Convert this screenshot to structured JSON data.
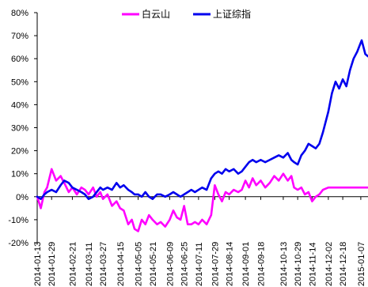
{
  "chart_data": {
    "type": "line",
    "title": "",
    "xlabel": "",
    "ylabel": "",
    "ylim": [
      -20,
      80
    ],
    "yticks": [
      80,
      70,
      60,
      50,
      40,
      30,
      20,
      10,
      0,
      -10,
      -20
    ],
    "ytick_labels": [
      "80%",
      "70%",
      "60%",
      "50%",
      "40%",
      "30%",
      "20%",
      "10%",
      "0%",
      "-10%",
      "-20%"
    ],
    "x_start": "2014-01-13",
    "x_end": "2015-01-15",
    "xtick_labels": [
      "2014-01-13",
      "2014-01-29",
      "2014-02-21",
      "2014-03-11",
      "2014-03-27",
      "2014-04-15",
      "2014-05-05",
      "2014-05-21",
      "2014-06-09",
      "2014-06-25",
      "2014-07-11",
      "2014-07-29",
      "2014-08-14",
      "2014-09-01",
      "2014-09-18",
      "2014-10-13",
      "2014-10-29",
      "2014-11-14",
      "2014-12-02",
      "2014-12-18",
      "2015-01-07"
    ],
    "legend_position": "top",
    "grid": false,
    "series": [
      {
        "name": "白云山",
        "color": "#ff00ff",
        "points": [
          [
            "2014-01-13",
            0
          ],
          [
            "2014-01-17",
            -5
          ],
          [
            "2014-01-21",
            2
          ],
          [
            "2014-01-24",
            4
          ],
          [
            "2014-01-29",
            12
          ],
          [
            "2014-02-03",
            7
          ],
          [
            "2014-02-08",
            9
          ],
          [
            "2014-02-12",
            6
          ],
          [
            "2014-02-17",
            2
          ],
          [
            "2014-02-21",
            4
          ],
          [
            "2014-02-26",
            1
          ],
          [
            "2014-03-03",
            4
          ],
          [
            "2014-03-07",
            3
          ],
          [
            "2014-03-11",
            1
          ],
          [
            "2014-03-16",
            4
          ],
          [
            "2014-03-20",
            0
          ],
          [
            "2014-03-24",
            2
          ],
          [
            "2014-03-27",
            -1
          ],
          [
            "2014-04-01",
            1
          ],
          [
            "2014-04-06",
            -4
          ],
          [
            "2014-04-11",
            -2
          ],
          [
            "2014-04-15",
            -5
          ],
          [
            "2014-04-19",
            -6
          ],
          [
            "2014-04-24",
            -12
          ],
          [
            "2014-04-28",
            -10
          ],
          [
            "2014-05-01",
            -14
          ],
          [
            "2014-05-05",
            -15
          ],
          [
            "2014-05-09",
            -10
          ],
          [
            "2014-05-13",
            -12
          ],
          [
            "2014-05-17",
            -8
          ],
          [
            "2014-05-21",
            -10
          ],
          [
            "2014-05-26",
            -12
          ],
          [
            "2014-05-30",
            -11
          ],
          [
            "2014-06-04",
            -13
          ],
          [
            "2014-06-09",
            -10
          ],
          [
            "2014-06-13",
            -6
          ],
          [
            "2014-06-17",
            -9
          ],
          [
            "2014-06-21",
            -10
          ],
          [
            "2014-06-25",
            -4
          ],
          [
            "2014-06-29",
            -12
          ],
          [
            "2014-07-03",
            -12
          ],
          [
            "2014-07-07",
            -11
          ],
          [
            "2014-07-11",
            -12
          ],
          [
            "2014-07-15",
            -10
          ],
          [
            "2014-07-20",
            -12
          ],
          [
            "2014-07-25",
            -8
          ],
          [
            "2014-07-29",
            5
          ],
          [
            "2014-08-02",
            1
          ],
          [
            "2014-08-06",
            -2
          ],
          [
            "2014-08-10",
            2
          ],
          [
            "2014-08-14",
            1
          ],
          [
            "2014-08-19",
            3
          ],
          [
            "2014-08-24",
            2
          ],
          [
            "2014-08-28",
            3
          ],
          [
            "2014-09-01",
            7
          ],
          [
            "2014-09-05",
            4
          ],
          [
            "2014-09-09",
            8
          ],
          [
            "2014-09-13",
            5
          ],
          [
            "2014-09-18",
            7
          ],
          [
            "2014-09-23",
            4
          ],
          [
            "2014-09-28",
            6
          ],
          [
            "2014-10-03",
            9
          ],
          [
            "2014-10-08",
            7
          ],
          [
            "2014-10-13",
            10
          ],
          [
            "2014-10-18",
            7
          ],
          [
            "2014-10-22",
            9
          ],
          [
            "2014-10-25",
            4
          ],
          [
            "2014-10-29",
            3
          ],
          [
            "2014-11-02",
            4
          ],
          [
            "2014-11-06",
            1
          ],
          [
            "2014-11-10",
            2
          ],
          [
            "2014-11-14",
            -2
          ],
          [
            "2014-11-18",
            0
          ],
          [
            "2014-11-22",
            1
          ],
          [
            "2014-11-26",
            3
          ],
          [
            "2014-12-02",
            4
          ],
          [
            "2014-12-10",
            4
          ],
          [
            "2014-12-18",
            4
          ],
          [
            "2014-12-28",
            4
          ],
          [
            "2015-01-07",
            4
          ],
          [
            "2015-01-15",
            4
          ]
        ]
      },
      {
        "name": "上证综指",
        "color": "#0000ee",
        "points": [
          [
            "2014-01-13",
            0
          ],
          [
            "2014-01-17",
            -1
          ],
          [
            "2014-01-21",
            1
          ],
          [
            "2014-01-24",
            2
          ],
          [
            "2014-01-29",
            3
          ],
          [
            "2014-02-03",
            2
          ],
          [
            "2014-02-08",
            5
          ],
          [
            "2014-02-12",
            7
          ],
          [
            "2014-02-17",
            6
          ],
          [
            "2014-02-21",
            4
          ],
          [
            "2014-02-26",
            3
          ],
          [
            "2014-03-03",
            2
          ],
          [
            "2014-03-07",
            1
          ],
          [
            "2014-03-11",
            -1
          ],
          [
            "2014-03-16",
            0
          ],
          [
            "2014-03-20",
            2
          ],
          [
            "2014-03-24",
            4
          ],
          [
            "2014-03-27",
            3
          ],
          [
            "2014-04-01",
            4
          ],
          [
            "2014-04-06",
            3
          ],
          [
            "2014-04-11",
            6
          ],
          [
            "2014-04-15",
            4
          ],
          [
            "2014-04-19",
            5
          ],
          [
            "2014-04-24",
            3
          ],
          [
            "2014-04-28",
            2
          ],
          [
            "2014-05-01",
            1
          ],
          [
            "2014-05-05",
            1
          ],
          [
            "2014-05-09",
            0
          ],
          [
            "2014-05-13",
            2
          ],
          [
            "2014-05-17",
            0
          ],
          [
            "2014-05-21",
            -1
          ],
          [
            "2014-05-26",
            1
          ],
          [
            "2014-05-30",
            1
          ],
          [
            "2014-06-04",
            0
          ],
          [
            "2014-06-09",
            1
          ],
          [
            "2014-06-13",
            2
          ],
          [
            "2014-06-17",
            1
          ],
          [
            "2014-06-21",
            0
          ],
          [
            "2014-06-25",
            1
          ],
          [
            "2014-06-29",
            2
          ],
          [
            "2014-07-03",
            3
          ],
          [
            "2014-07-07",
            2
          ],
          [
            "2014-07-11",
            3
          ],
          [
            "2014-07-15",
            4
          ],
          [
            "2014-07-20",
            3
          ],
          [
            "2014-07-25",
            8
          ],
          [
            "2014-07-29",
            10
          ],
          [
            "2014-08-02",
            11
          ],
          [
            "2014-08-06",
            10
          ],
          [
            "2014-08-10",
            12
          ],
          [
            "2014-08-14",
            11
          ],
          [
            "2014-08-19",
            12
          ],
          [
            "2014-08-24",
            10
          ],
          [
            "2014-08-28",
            11
          ],
          [
            "2014-09-01",
            13
          ],
          [
            "2014-09-05",
            15
          ],
          [
            "2014-09-09",
            16
          ],
          [
            "2014-09-13",
            15
          ],
          [
            "2014-09-18",
            16
          ],
          [
            "2014-09-23",
            15
          ],
          [
            "2014-09-28",
            16
          ],
          [
            "2014-10-03",
            17
          ],
          [
            "2014-10-08",
            18
          ],
          [
            "2014-10-13",
            17
          ],
          [
            "2014-10-18",
            19
          ],
          [
            "2014-10-22",
            16
          ],
          [
            "2014-10-25",
            15
          ],
          [
            "2014-10-29",
            14
          ],
          [
            "2014-11-02",
            18
          ],
          [
            "2014-11-06",
            20
          ],
          [
            "2014-11-10",
            23
          ],
          [
            "2014-11-14",
            22
          ],
          [
            "2014-11-18",
            21
          ],
          [
            "2014-11-22",
            23
          ],
          [
            "2014-11-26",
            28
          ],
          [
            "2014-12-02",
            37
          ],
          [
            "2014-12-06",
            45
          ],
          [
            "2014-12-10",
            50
          ],
          [
            "2014-12-14",
            47
          ],
          [
            "2014-12-18",
            51
          ],
          [
            "2014-12-22",
            48
          ],
          [
            "2014-12-26",
            55
          ],
          [
            "2014-12-30",
            60
          ],
          [
            "2015-01-03",
            63
          ],
          [
            "2015-01-06",
            66
          ],
          [
            "2015-01-08",
            68
          ],
          [
            "2015-01-10",
            65
          ],
          [
            "2015-01-12",
            62
          ],
          [
            "2015-01-15",
            61
          ]
        ]
      }
    ]
  }
}
